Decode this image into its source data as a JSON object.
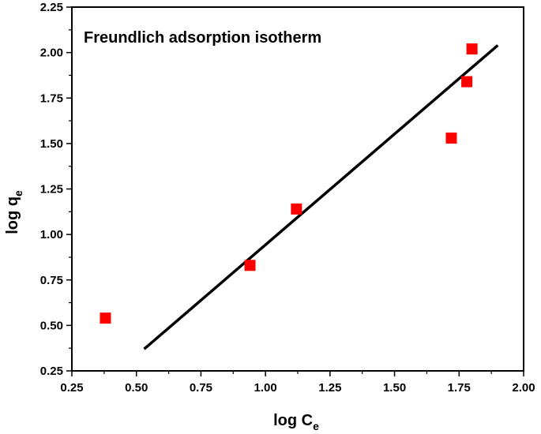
{
  "chart_data": {
    "type": "scatter",
    "title": "Freundlich adsorption isotherm",
    "xlabel": {
      "main": "log C",
      "sub": "e"
    },
    "ylabel": {
      "main": "log q",
      "sub": "e"
    },
    "xlim": [
      0.25,
      2.0
    ],
    "ylim": [
      0.25,
      2.25
    ],
    "x_ticks": [
      "0.25",
      "0.50",
      "0.75",
      "1.00",
      "1.25",
      "1.50",
      "1.75",
      "2.00"
    ],
    "y_ticks": [
      "0.25",
      "0.50",
      "0.75",
      "1.00",
      "1.25",
      "1.50",
      "1.75",
      "2.00",
      "2.25"
    ],
    "grid": false,
    "series": [
      {
        "type": "scatter",
        "marker": "square",
        "color": "#ff0000",
        "points": [
          {
            "x": 0.38,
            "y": 0.54
          },
          {
            "x": 0.94,
            "y": 0.83
          },
          {
            "x": 1.12,
            "y": 1.14
          },
          {
            "x": 1.72,
            "y": 1.53
          },
          {
            "x": 1.78,
            "y": 1.84
          },
          {
            "x": 1.8,
            "y": 2.02
          }
        ]
      },
      {
        "type": "line",
        "color": "#000000",
        "points": [
          {
            "x": 0.53,
            "y": 0.37
          },
          {
            "x": 1.9,
            "y": 2.04
          }
        ]
      }
    ]
  }
}
